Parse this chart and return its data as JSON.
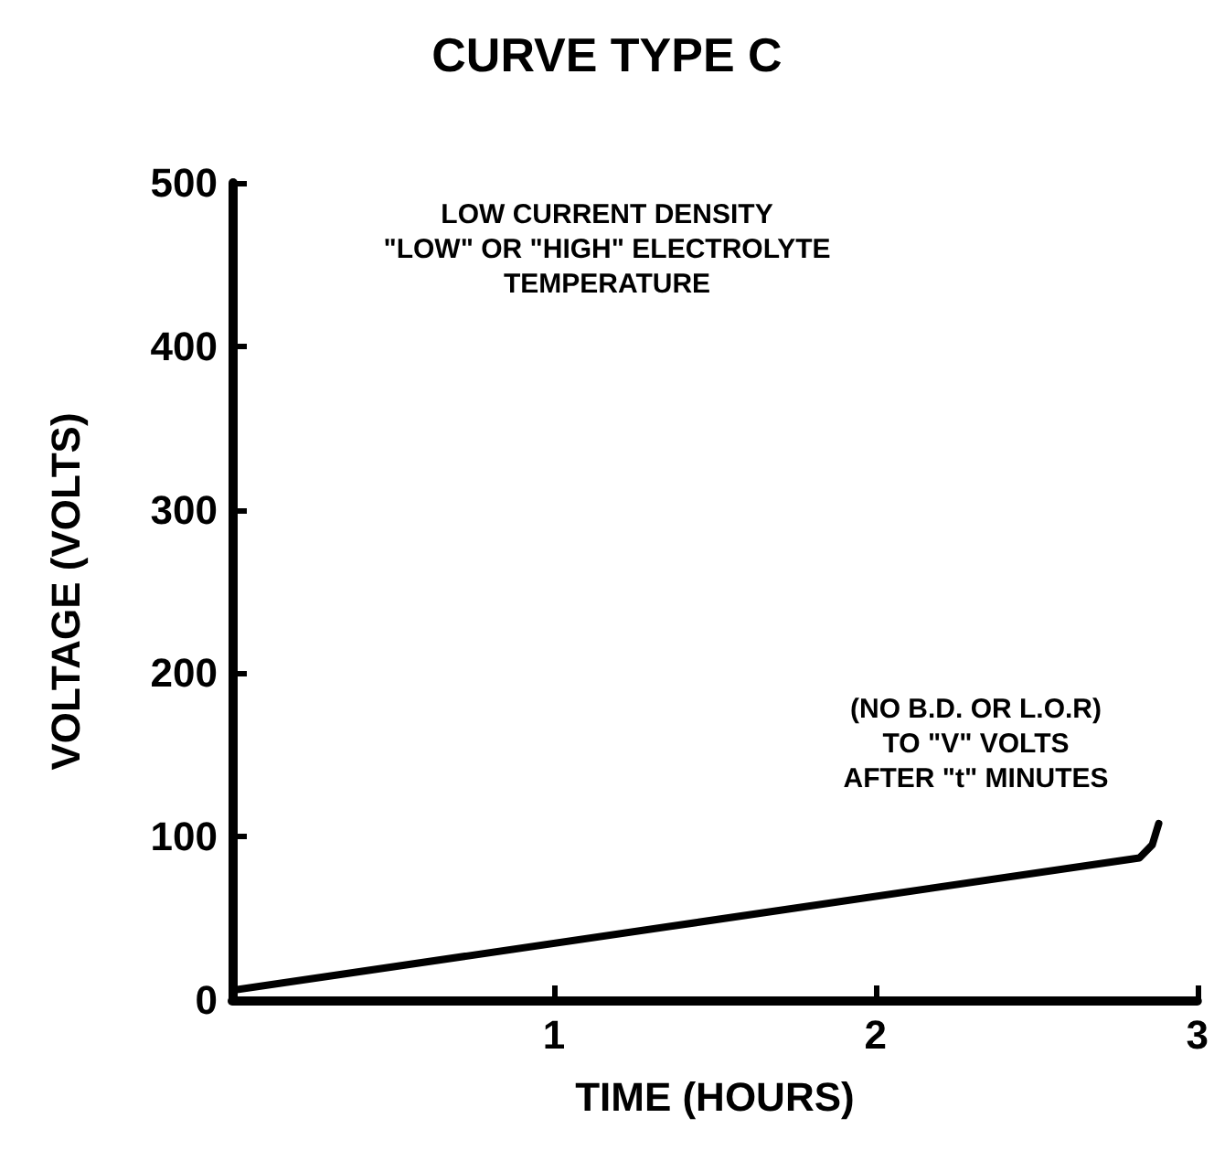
{
  "chart_data": {
    "type": "line",
    "title": "CURVE TYPE C",
    "xlabel": "TIME (HOURS)",
    "ylabel": "VOLTAGE (VOLTS)",
    "x": [
      0,
      2.82,
      2.86,
      2.88
    ],
    "series": [
      {
        "color": "#000000",
        "values": [
          6,
          87,
          95,
          108
        ]
      }
    ],
    "xlim": [
      0,
      3
    ],
    "xticks": [
      1,
      2,
      3
    ],
    "ylim": [
      0,
      500
    ],
    "yticks": [
      0,
      100,
      200,
      300,
      400,
      500
    ],
    "grid": false,
    "marker": "none",
    "line_style": "solid",
    "annotations": [
      "LOW CURRENT DENSITY\n\"LOW\" OR \"HIGH\" ELECTROLYTE\nTEMPERATURE",
      {
        "text": "(NO B.D. OR L.O.R)\nTO \"V\" VOLTS\nAFTER \"t\" MINUTES",
        "x": 2.88,
        "y": 108
      }
    ]
  }
}
